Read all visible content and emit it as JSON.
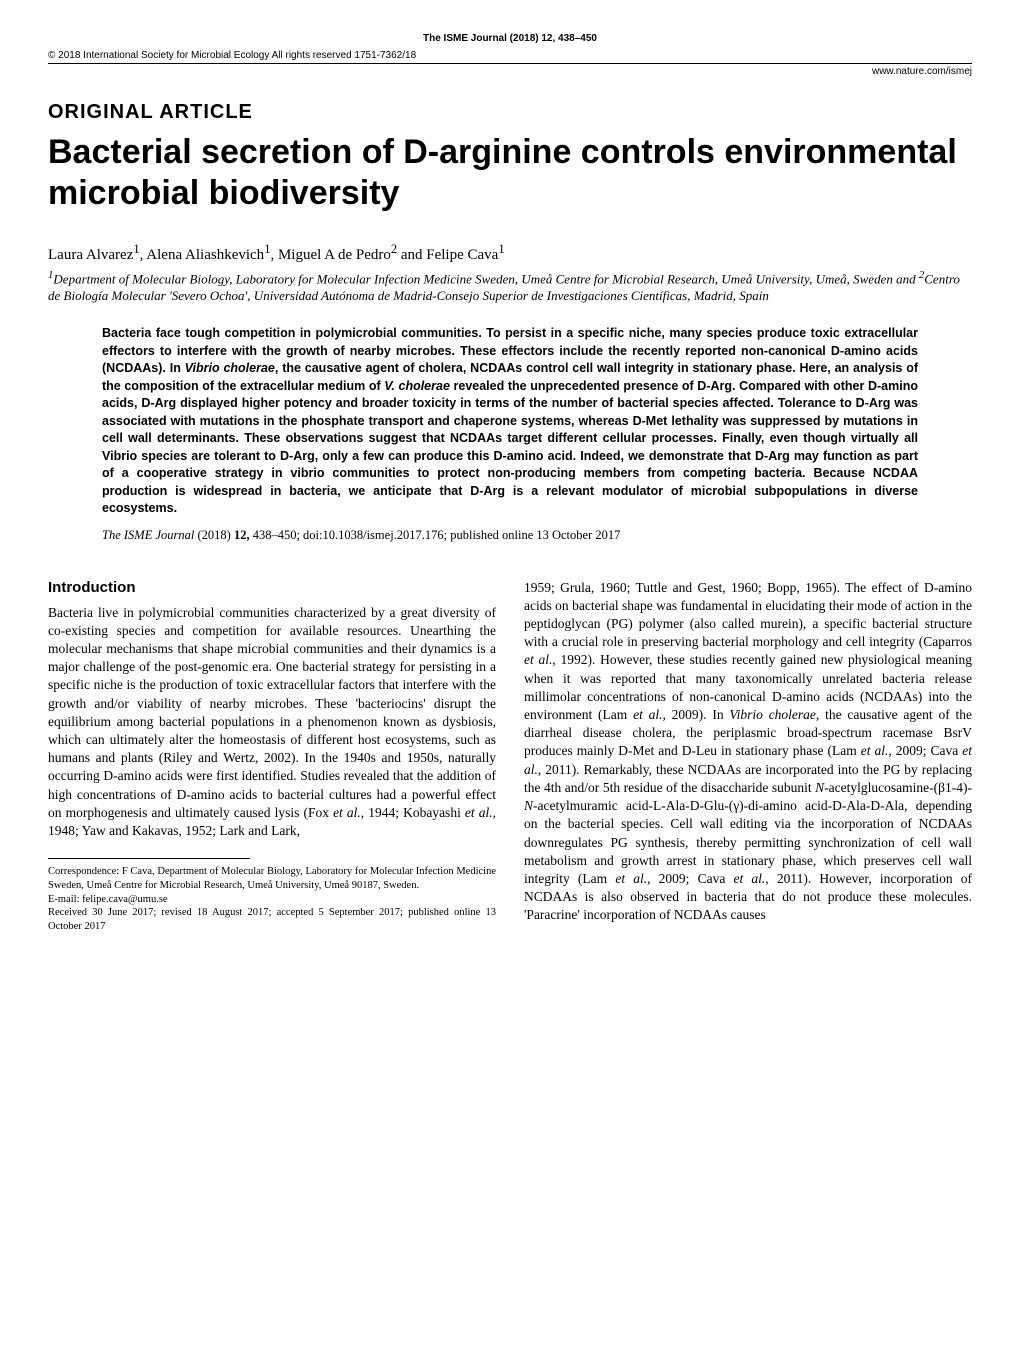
{
  "header": {
    "journalLine": "The ISME Journal (2018) 12, 438–450",
    "copyrightLine": "© 2018 International Society for Microbial Ecology  All rights reserved 1751-7362/18",
    "urlLine": "www.nature.com/ismej"
  },
  "articleType": "ORIGINAL ARTICLE",
  "title": "Bacterial secretion of D-arginine controls environmental microbial biodiversity",
  "authorsHtml": "Laura Alvarez<sup>1</sup>, Alena Aliashkevich<sup>1</sup>, Miguel A de Pedro<sup>2</sup> and Felipe Cava<sup>1</sup>",
  "affiliationsHtml": "<sup>1</sup>Department of Molecular Biology, Laboratory for Molecular Infection Medicine Sweden, Umeå Centre for Microbial Research, Umeå University, Umeå, Sweden and <sup>2</sup>Centro de Biología Molecular 'Severo Ochoa', Universidad Autónoma de Madrid-Consejo Superior de Investigaciones Científicas, Madrid, Spain",
  "abstractHtml": "Bacteria face tough competition in polymicrobial communities. To persist in a specific niche, many species produce toxic extracellular effectors to interfere with the growth of nearby microbes. These effectors include the recently reported non-canonical D-amino acids (NCDAAs). In <i>Vibrio cholerae</i>, the causative agent of cholera, NCDAAs control cell wall integrity in stationary phase. Here, an analysis of the composition of the extracellular medium of <i>V. cholerae</i> revealed the unprecedented presence of D-Arg. Compared with other D-amino acids, D-Arg displayed higher potency and broader toxicity in terms of the number of bacterial species affected. Tolerance to D-Arg was associated with mutations in the phosphate transport and chaperone systems, whereas D-Met lethality was suppressed by mutations in cell wall determinants. These observations suggest that NCDAAs target different cellular processes. Finally, even though virtually all Vibrio species are tolerant to D-Arg, only a few can produce this D-amino acid. Indeed, we demonstrate that D-Arg may function as part of a cooperative strategy in vibrio communities to protect non-producing members from competing bacteria. Because NCDAA production is widespread in bacteria, we anticipate that D-Arg is a relevant modulator of microbial subpopulations in diverse ecosystems.",
  "citation": {
    "journal": "The ISME Journal",
    "yearVolPages": " (2018) ",
    "volume": "12,",
    "pages": " 438–450; doi:10.1038/ismej.2017.176; published online 13 October 2017"
  },
  "introHeading": "Introduction",
  "leftColHtml": "Bacteria live in polymicrobial communities characterized by a great diversity of co-existing species and competition for available resources. Unearthing the molecular mechanisms that shape microbial communities and their dynamics is a major challenge of the post-genomic era. One bacterial strategy for persisting in a specific niche is the production of toxic extracellular factors that interfere with the growth and/or viability of nearby microbes. These 'bacteriocins' disrupt the equilibrium among bacterial populations in a phenomenon known as dysbiosis, which can ultimately alter the homeostasis of different host ecosystems, such as humans and plants (Riley and Wertz, 2002). In the 1940s and 1950s, naturally occurring D-amino acids were first identified. Studies revealed that the addition of high concentrations of D-amino acids to bacterial cultures had a powerful effect on morphogenesis and ultimately caused lysis (Fox <i>et al.</i>, 1944; Kobayashi <i>et al.</i>, 1948; Yaw and Kakavas, 1952; Lark and Lark,",
  "rightColHtml": "1959; Grula, 1960; Tuttle and Gest, 1960; Bopp, 1965). The effect of D-amino acids on bacterial shape was fundamental in elucidating their mode of action in the peptidoglycan (PG) polymer (also called murein), a specific bacterial structure with a crucial role in preserving bacterial morphology and cell integrity (Caparros <i>et al.</i>, 1992). However, these studies recently gained new physiological meaning when it was reported that many taxonomically unrelated bacteria release millimolar concentrations of non-canonical D-amino acids (NCDAAs) into the environment (Lam <i>et al.</i>, 2009). In <i>Vibrio cholerae</i>, the causative agent of the diarrheal disease cholera, the periplasmic broad-spectrum racemase BsrV produces mainly D-Met and D-Leu in stationary phase (Lam <i>et al.</i>, 2009; Cava <i>et al.</i>, 2011). Remarkably, these NCDAAs are incorporated into the PG by replacing the 4th and/or 5th residue of the disaccharide subunit <i>N</i>-acetylglucosamine-(β1-4)-<i>N</i>-acetylmuramic acid-L-Ala-D-Glu-(γ)-di-amino acid-D-Ala-D-Ala, depending on the bacterial species. Cell wall editing via the incorporation of NCDAAs downregulates PG synthesis, thereby permitting synchronization of cell wall metabolism and growth arrest in stationary phase, which preserves cell wall integrity (Lam <i>et al.</i>, 2009; Cava <i>et al.</i>, 2011). However, incorporation of NCDAAs is also observed in bacteria that do not produce these molecules. 'Paracrine' incorporation of NCDAAs causes",
  "footnote": {
    "correspondence": "Correspondence: F Cava, Department of Molecular Biology, Laboratory for Molecular Infection Medicine Sweden, Umeå Centre for Microbial Research, Umeå University, Umeå 90187, Sweden.",
    "email": "E-mail: felipe.cava@umu.se",
    "dates": "Received 30 June 2017; revised 18 August 2017; accepted 5 September 2017; published online 13 October 2017"
  },
  "style": {
    "pageWidth": 1020,
    "pageHeight": 1355,
    "background": "#ffffff",
    "textColor": "#000000",
    "ruleColor": "#000000",
    "fonts": {
      "sans": "Arial, Helvetica, sans-serif",
      "serif": "Georgia, 'Times New Roman', serif"
    },
    "titleFontSize": 34,
    "articleTypeFontSize": 20,
    "bodyFontSize": 13.5,
    "abstractFontSize": 12.5,
    "footnoteFontSize": 10.5,
    "columnGap": 28,
    "abstractMargin": 54
  }
}
